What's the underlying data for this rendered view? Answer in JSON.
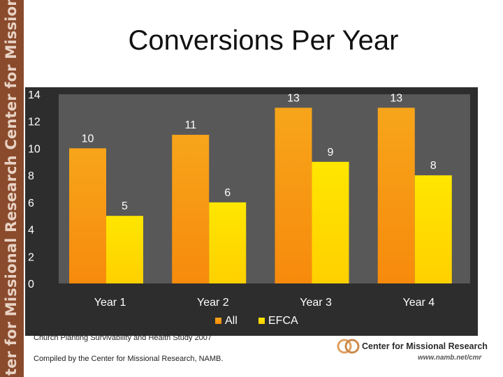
{
  "sidebar": {
    "text": "ter for Missional Research Center for Missional Research Center for Missional Research Center for Missional Re"
  },
  "slide": {
    "title": "Conversions Per Year"
  },
  "colors": {
    "all": "#f7a51a",
    "efca": "#ffe600",
    "chart_bg": "#2d2d2d",
    "plot_bg": "#585858",
    "label": "#ffffff"
  },
  "chart_data": {
    "type": "bar",
    "categories": [
      "Year 1",
      "Year 2",
      "Year 3",
      "Year 4"
    ],
    "series": [
      {
        "name": "All",
        "values": [
          10,
          11,
          13,
          13
        ]
      },
      {
        "name": "EFCA",
        "values": [
          5,
          6,
          9,
          8
        ]
      }
    ],
    "ylim": [
      0,
      14
    ],
    "yticks": [
      "0",
      "2",
      "4",
      "6",
      "8",
      "10",
      "12",
      "14"
    ],
    "grid": false,
    "legend": "bottom-center",
    "data_labels": true
  },
  "footer": {
    "source": "Church Planting Survivability and Health Study 2007",
    "compiled": "Compiled by the Center for Missional Research, NAMB.",
    "logo_name": "Center for Missional Research",
    "logo_url": "www.namb.net/cmr"
  }
}
